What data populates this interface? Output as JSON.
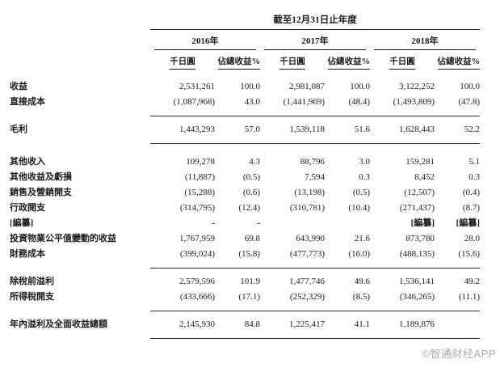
{
  "header": {
    "period": "截至12月31日止年度",
    "years": [
      "2016年",
      "2017年",
      "2018年"
    ],
    "sub_headers": [
      "千日圓",
      "佔總收益%"
    ]
  },
  "table": {
    "rows": [
      {
        "label": "收益",
        "values": [
          "2,531,261",
          "100.0",
          "2,981,087",
          "100.0",
          "3,122,252",
          "100.0"
        ],
        "flags": []
      },
      {
        "label": "直接成本",
        "values": [
          "(1,087,968)",
          "43.0",
          "(1,441,969)",
          "(48.4)",
          "(1,493,809)",
          "(47.8)"
        ],
        "flags": []
      },
      {
        "label": "毛利",
        "values": [
          "1,443,293",
          "57.0",
          "1,539,118",
          "51.6",
          "1,628,443",
          "52.2"
        ],
        "flags": [
          "rule-above",
          "rule-below"
        ]
      },
      {
        "label": "其他收入",
        "values": [
          "109,278",
          "4.3",
          "88,796",
          "3.0",
          "159,281",
          "5.1"
        ],
        "flags": [
          "gap-above"
        ]
      },
      {
        "label": "其他收益及虧損",
        "values": [
          "(11,887)",
          "(0.5)",
          "7,594",
          "0.3",
          "8,452",
          "0.3"
        ],
        "flags": []
      },
      {
        "label": "銷售及營銷開支",
        "values": [
          "(15,288)",
          "(0.6)",
          "(13,198)",
          "(0.5)",
          "(12,507)",
          "(0.4)"
        ],
        "flags": []
      },
      {
        "label": "行政開支",
        "values": [
          "(314,795)",
          "(12.4)",
          "(310,781)",
          "(10.4)",
          "(271,437)",
          "(8.7)"
        ],
        "flags": []
      },
      {
        "label": "[編纂]",
        "values": [
          "-",
          "-",
          "",
          "",
          "[編纂]",
          "[編纂]"
        ],
        "flags": [
          "bold-values"
        ]
      },
      {
        "label": "投資物業公平值變動的收益",
        "values": [
          "1,767,959",
          "69.8",
          "643,990",
          "21.6",
          "873,780",
          "28.0"
        ],
        "flags": []
      },
      {
        "label": "財務成本",
        "values": [
          "(399,024)",
          "(15.8)",
          "(477,773)",
          "(16.0)",
          "(488,135)",
          "(15.6)"
        ],
        "flags": []
      },
      {
        "label": "除稅前溢利",
        "values": [
          "2,579,596",
          "101.9",
          "1,477,746",
          "49.6",
          "1,536,141",
          "49.2"
        ],
        "flags": [
          "rule-above"
        ]
      },
      {
        "label": "所得稅開支",
        "values": [
          "(433,666)",
          "(17.1)",
          "(252,329)",
          "(8.5)",
          "(346,265)",
          "(11.1)"
        ],
        "flags": []
      },
      {
        "label": "年內溢利及全面收益總額",
        "values": [
          "2,145,930",
          "84.8",
          "1,225,417",
          "41.1",
          "1,189,876",
          ""
        ],
        "flags": [
          "rule-above",
          "rule-below"
        ]
      }
    ]
  },
  "watermark": "©智通财经APP"
}
